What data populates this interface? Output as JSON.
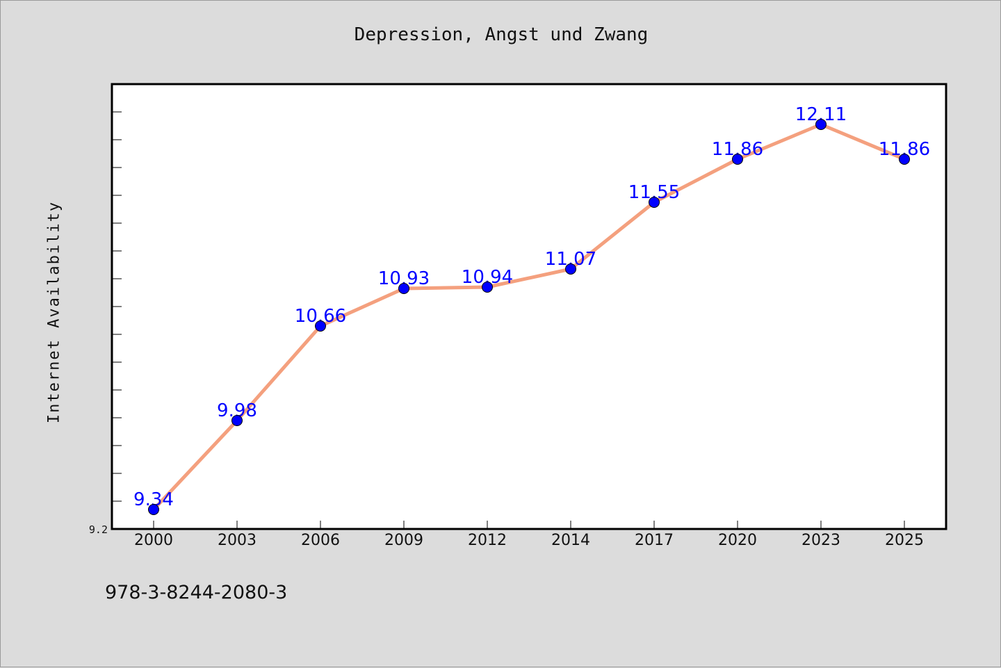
{
  "chart_data": {
    "type": "line",
    "title": "Depression, Angst und Zwang",
    "xlabel": "",
    "ylabel": "Internet Availability",
    "categories": [
      "2000",
      "2003",
      "2006",
      "2009",
      "2012",
      "2014",
      "2017",
      "2020",
      "2023",
      "2025"
    ],
    "values": [
      9.34,
      9.98,
      10.66,
      10.93,
      10.94,
      11.07,
      11.55,
      11.86,
      12.11,
      11.86
    ],
    "data_labels": [
      "9.34",
      "9.98",
      "10.66",
      "10.93",
      "10.94",
      "11.07",
      "11.55",
      "11.86",
      "12.11",
      "11.86"
    ],
    "ylim": [
      9.2,
      12.4
    ],
    "y_tick_labels": [
      "9.2"
    ],
    "grid": false,
    "line_color": "#f4a07e",
    "marker_color": "#0000ff",
    "label_color": "#0000ff",
    "plot_background": "#ffffff",
    "page_background": "#dcdcdc"
  },
  "footer": {
    "isbn": "978-3-8244-2080-3"
  }
}
